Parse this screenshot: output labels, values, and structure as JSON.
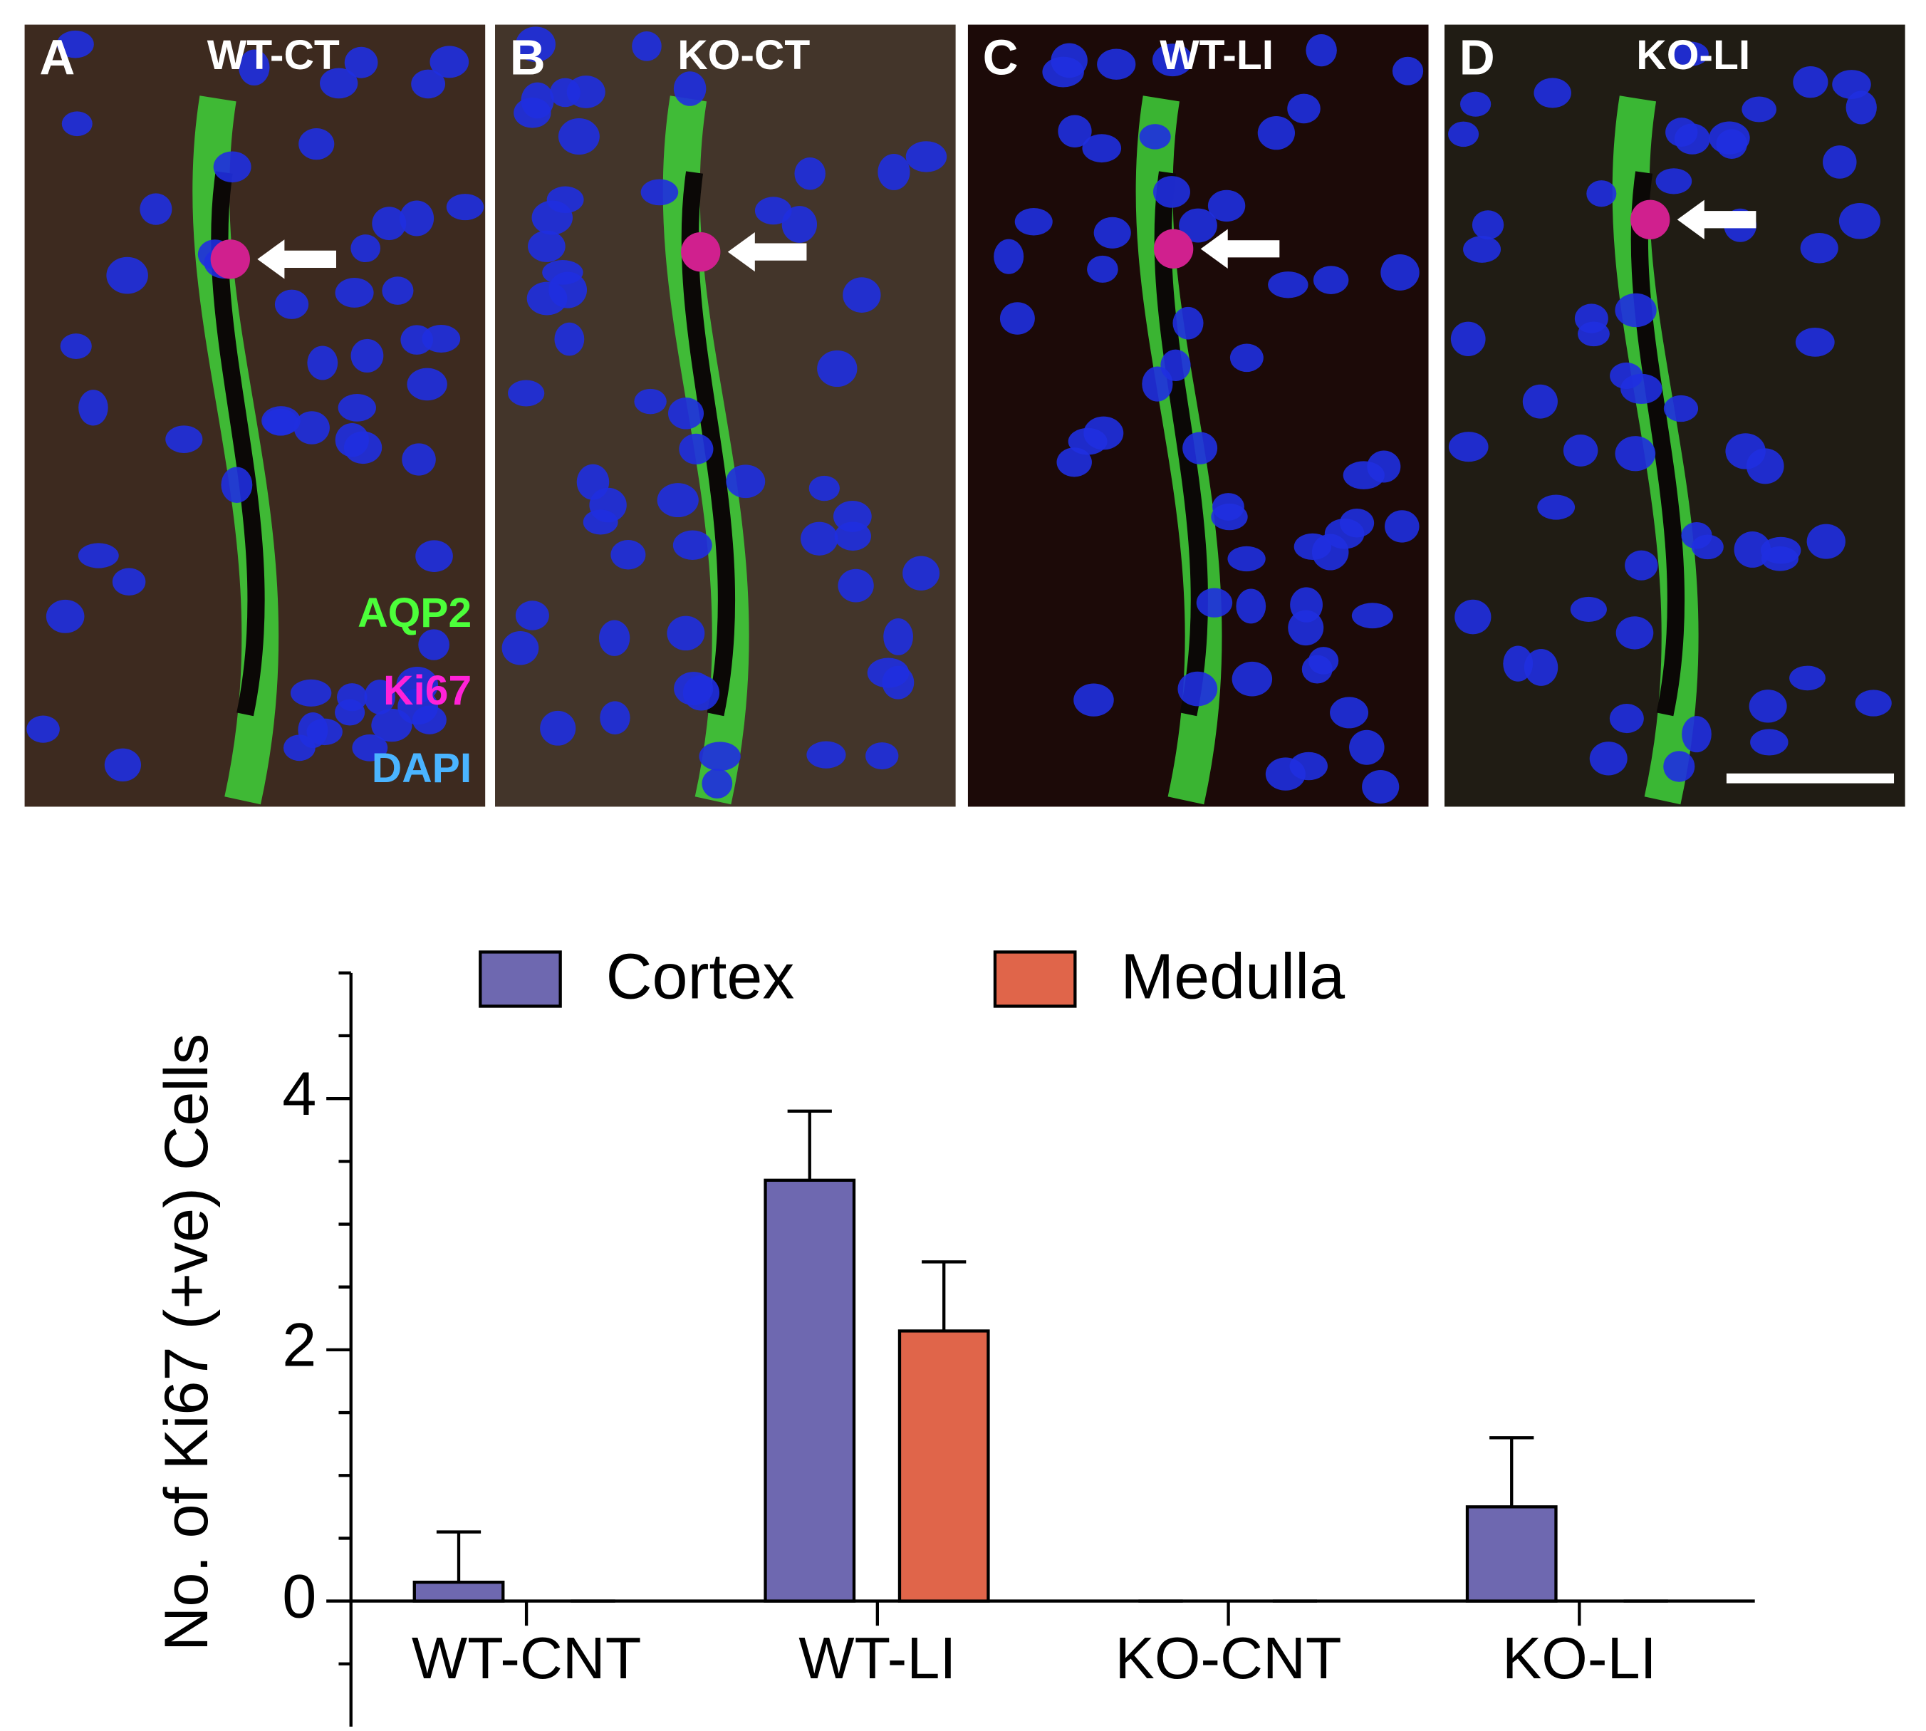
{
  "panels": [
    {
      "letter": "A",
      "title": "WT-CT",
      "background": "#3d2a1f"
    },
    {
      "letter": "B",
      "title": "KO-CT",
      "background": "#43352a"
    },
    {
      "letter": "C",
      "title": "WT-LI",
      "background": "#1c0a08"
    },
    {
      "letter": "D",
      "title": "KO-LI",
      "background": "#201c14"
    }
  ],
  "stain_labels": [
    {
      "text": "AQP2",
      "color": "#4cff3a"
    },
    {
      "text": "Ki67",
      "color": "#ff22d8"
    },
    {
      "text": "DAPI",
      "color": "#4ab4ff"
    }
  ],
  "chart_data": {
    "type": "bar",
    "ylabel": "No. of Ki67 (+ve) Cells",
    "categories": [
      "WT-CNT",
      "WT-LI",
      "KO-CNT",
      "KO-LI"
    ],
    "series": [
      {
        "name": "Cortex",
        "color": "#6e68b0",
        "values": [
          0.15,
          3.35,
          0,
          0.75
        ],
        "errors": [
          0.4,
          0.55,
          0,
          0.55
        ]
      },
      {
        "name": "Medulla",
        "color": "#e0654a",
        "values": [
          0,
          2.15,
          0,
          0
        ],
        "errors": [
          0,
          0.55,
          0,
          0
        ]
      }
    ],
    "ylim": [
      -1,
      5
    ],
    "yticks": [
      0,
      2,
      4
    ],
    "minor_yticks": [
      -0.5,
      0.5,
      1,
      1.5,
      2.5,
      3,
      3.5,
      4.5,
      5
    ],
    "legend": "top"
  }
}
